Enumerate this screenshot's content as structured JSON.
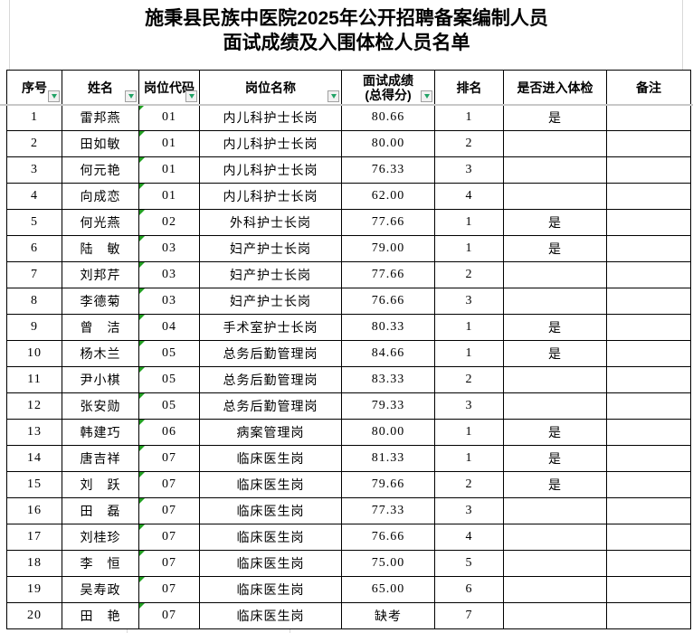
{
  "title": {
    "line1": "施秉县民族中医院2025年公开招聘备案编制人员",
    "line2": "面试成绩及入围体检人员名单"
  },
  "table": {
    "columns": [
      {
        "key": "index",
        "label": "序号",
        "filter": true
      },
      {
        "key": "name",
        "label": "姓名",
        "filter": true
      },
      {
        "key": "job_code",
        "label": "岗位代码",
        "filter": true
      },
      {
        "key": "job_title",
        "label": "岗位名称",
        "filter": true
      },
      {
        "key": "score",
        "label": "面试成绩\n(总得分)",
        "filter": true
      },
      {
        "key": "rank",
        "label": "排名",
        "filter": false
      },
      {
        "key": "enter_physical",
        "label": "是否进入体检",
        "filter": false
      },
      {
        "key": "remark",
        "label": "备注",
        "filter": false
      }
    ],
    "rows": [
      {
        "index": "1",
        "name": "雷邦燕",
        "job_code": "01",
        "job_title": "内儿科护士长岗",
        "score": "80.66",
        "rank": "1",
        "enter_physical": "是",
        "remark": ""
      },
      {
        "index": "2",
        "name": "田如敏",
        "job_code": "01",
        "job_title": "内儿科护士长岗",
        "score": "80.00",
        "rank": "2",
        "enter_physical": "",
        "remark": ""
      },
      {
        "index": "3",
        "name": "何元艳",
        "job_code": "01",
        "job_title": "内儿科护士长岗",
        "score": "76.33",
        "rank": "3",
        "enter_physical": "",
        "remark": ""
      },
      {
        "index": "4",
        "name": "向成恋",
        "job_code": "01",
        "job_title": "内儿科护士长岗",
        "score": "62.00",
        "rank": "4",
        "enter_physical": "",
        "remark": ""
      },
      {
        "index": "5",
        "name": "何光燕",
        "job_code": "02",
        "job_title": "外科护士长岗",
        "score": "77.66",
        "rank": "1",
        "enter_physical": "是",
        "remark": ""
      },
      {
        "index": "6",
        "name": "陆　敏",
        "job_code": "03",
        "job_title": "妇产护士长岗",
        "score": "79.00",
        "rank": "1",
        "enter_physical": "是",
        "remark": ""
      },
      {
        "index": "7",
        "name": "刘邦芹",
        "job_code": "03",
        "job_title": "妇产护士长岗",
        "score": "77.66",
        "rank": "2",
        "enter_physical": "",
        "remark": ""
      },
      {
        "index": "8",
        "name": "李德菊",
        "job_code": "03",
        "job_title": "妇产护士长岗",
        "score": "76.66",
        "rank": "3",
        "enter_physical": "",
        "remark": ""
      },
      {
        "index": "9",
        "name": "曾　洁",
        "job_code": "04",
        "job_title": "手术室护士长岗",
        "score": "80.33",
        "rank": "1",
        "enter_physical": "是",
        "remark": ""
      },
      {
        "index": "10",
        "name": "杨木兰",
        "job_code": "05",
        "job_title": "总务后勤管理岗",
        "score": "84.66",
        "rank": "1",
        "enter_physical": "是",
        "remark": ""
      },
      {
        "index": "11",
        "name": "尹小棋",
        "job_code": "05",
        "job_title": "总务后勤管理岗",
        "score": "83.33",
        "rank": "2",
        "enter_physical": "",
        "remark": ""
      },
      {
        "index": "12",
        "name": "张安勋",
        "job_code": "05",
        "job_title": "总务后勤管理岗",
        "score": "79.33",
        "rank": "3",
        "enter_physical": "",
        "remark": ""
      },
      {
        "index": "13",
        "name": "韩建巧",
        "job_code": "06",
        "job_title": "病案管理岗",
        "score": "80.00",
        "rank": "1",
        "enter_physical": "是",
        "remark": ""
      },
      {
        "index": "14",
        "name": "唐吉祥",
        "job_code": "07",
        "job_title": "临床医生岗",
        "score": "81.33",
        "rank": "1",
        "enter_physical": "是",
        "remark": ""
      },
      {
        "index": "15",
        "name": "刘　跃",
        "job_code": "07",
        "job_title": "临床医生岗",
        "score": "79.66",
        "rank": "2",
        "enter_physical": "是",
        "remark": ""
      },
      {
        "index": "16",
        "name": "田　磊",
        "job_code": "07",
        "job_title": "临床医生岗",
        "score": "77.33",
        "rank": "3",
        "enter_physical": "",
        "remark": ""
      },
      {
        "index": "17",
        "name": "刘桂珍",
        "job_code": "07",
        "job_title": "临床医生岗",
        "score": "76.66",
        "rank": "4",
        "enter_physical": "",
        "remark": ""
      },
      {
        "index": "18",
        "name": "李　恒",
        "job_code": "07",
        "job_title": "临床医生岗",
        "score": "75.00",
        "rank": "5",
        "enter_physical": "",
        "remark": ""
      },
      {
        "index": "19",
        "name": "吴寿政",
        "job_code": "07",
        "job_title": "临床医生岗",
        "score": "65.00",
        "rank": "6",
        "enter_physical": "",
        "remark": ""
      },
      {
        "index": "20",
        "name": "田　艳",
        "job_code": "07",
        "job_title": "临床医生岗",
        "score": "缺考",
        "rank": "7",
        "enter_physical": "",
        "remark": ""
      }
    ]
  },
  "icons": {
    "filter_arrow": "autofilter-dropdown-arrow",
    "error_indicator": "number-stored-as-text-indicator"
  },
  "colors": {
    "filter_arrow": "#21a366",
    "error_indicator": "#22a022",
    "pane_divider": "#c8c8c8",
    "table_border": "#000000"
  }
}
